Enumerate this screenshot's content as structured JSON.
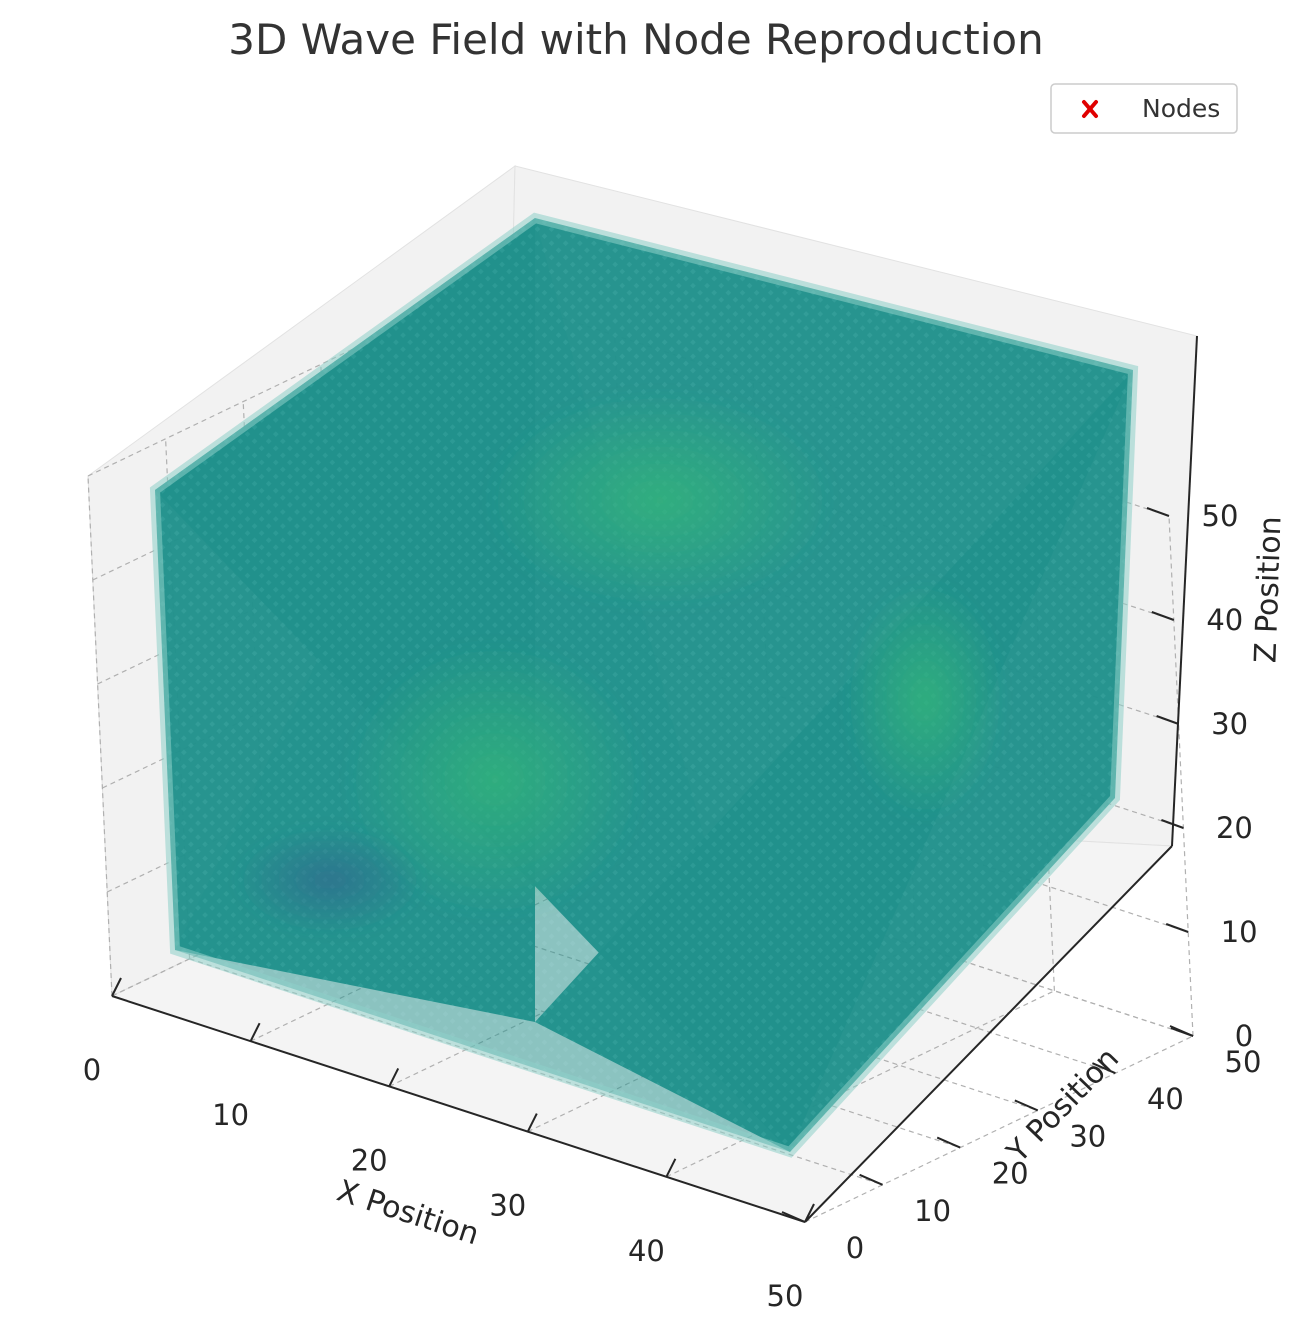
{
  "chart_data": {
    "type": "scatter",
    "projection": "3d",
    "title": "3D Wave Field with Node Reproduction",
    "xlabel": "X Position",
    "ylabel": "Y Position",
    "zlabel": "Z Position",
    "xlim": [
      0,
      50
    ],
    "ylim": [
      0,
      50
    ],
    "zlim": [
      0,
      50
    ],
    "xticks": [
      0,
      10,
      20,
      30,
      40,
      50
    ],
    "yticks": [
      0,
      10,
      20,
      30,
      40,
      50
    ],
    "zticks": [
      0,
      10,
      20,
      30,
      40,
      50
    ],
    "grid": true,
    "colormap": "viridis",
    "legend": {
      "placement": "upper right",
      "entries": [
        {
          "label": "Nodes",
          "marker": "x",
          "color": "#e00000"
        }
      ]
    },
    "series": [
      {
        "name": "Nodes",
        "marker": "x",
        "color": "#e00000",
        "x": [],
        "y": [],
        "z": []
      }
    ],
    "field": {
      "description_grid": "regular lattice 0-50 on each axis",
      "base_color": "#21918c",
      "highlight_color": "#35b779",
      "low_color": "#31688e"
    }
  }
}
